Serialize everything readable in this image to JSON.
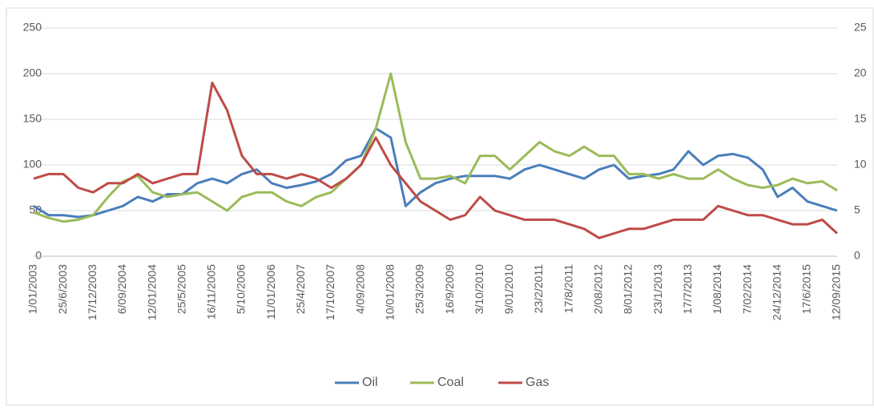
{
  "chart_data": {
    "type": "line",
    "categories": [
      "1/01/2003",
      null,
      "25/6/2003",
      null,
      "17/12/2003",
      null,
      "6/09/2004",
      null,
      "12/01/2004",
      null,
      "25/5/2005",
      null,
      "16/11/2005",
      null,
      "5/10/2006",
      null,
      "11/01/2006",
      null,
      "25/4/2007",
      null,
      "17/10/2007",
      null,
      "4/09/2008",
      null,
      "10/01/2008",
      null,
      "25/3/2009",
      null,
      "16/9/2009",
      null,
      "3/10/2010",
      null,
      "9/01/2010",
      null,
      "23/2/2011",
      null,
      "17/8/2011",
      null,
      "2/08/2012",
      null,
      "8/01/2012",
      null,
      "23/1/2013",
      null,
      "17/7/2013",
      null,
      "1/08/2014",
      null,
      "7/02/2014",
      null,
      "24/12/2014",
      null,
      "17/6/2015",
      null,
      "12/09/2015"
    ],
    "series": [
      {
        "name": "Oil",
        "color": "#4a7ebb",
        "values": [
          55,
          45,
          45,
          43,
          45,
          50,
          55,
          65,
          60,
          68,
          68,
          80,
          85,
          80,
          90,
          95,
          80,
          75,
          78,
          82,
          90,
          105,
          110,
          140,
          130,
          55,
          70,
          80,
          85,
          88,
          88,
          88,
          85,
          95,
          100,
          95,
          90,
          85,
          95,
          100,
          85,
          88,
          90,
          95,
          115,
          100,
          110,
          112,
          108,
          95,
          65,
          75,
          60,
          55,
          50
        ]
      },
      {
        "name": "Coal",
        "color": "#9bbb59",
        "values": [
          48,
          42,
          38,
          40,
          45,
          65,
          82,
          88,
          70,
          65,
          68,
          70,
          60,
          50,
          65,
          70,
          70,
          60,
          55,
          65,
          70,
          85,
          100,
          140,
          200,
          125,
          85,
          85,
          88,
          80,
          110,
          110,
          95,
          110,
          125,
          115,
          110,
          120,
          110,
          110,
          90,
          90,
          85,
          90,
          85,
          85,
          95,
          85,
          78,
          75,
          78,
          85,
          80,
          82,
          72
        ]
      },
      {
        "name": "Gas",
        "color": "#be4b48",
        "axis": "y2",
        "values": [
          8.5,
          9,
          9,
          7.5,
          7,
          8,
          8,
          9,
          8,
          8.5,
          9,
          9,
          19,
          16,
          11,
          9,
          9,
          8.5,
          9,
          8.5,
          7.5,
          8.5,
          10,
          13,
          10,
          8,
          6,
          5,
          4,
          4.5,
          6.5,
          5,
          4.5,
          4,
          4,
          4,
          3.5,
          3,
          2,
          2.5,
          3,
          3,
          3.5,
          4,
          4,
          4,
          5.5,
          5,
          4.5,
          4.5,
          4,
          3.5,
          3.5,
          4,
          2.5
        ]
      }
    ],
    "ylim": [
      0,
      250
    ],
    "yticks": [
      0,
      50,
      100,
      150,
      200,
      250
    ],
    "y2lim": [
      0,
      25
    ],
    "y2ticks": [
      0,
      5,
      10,
      15,
      20,
      25
    ],
    "grid": true,
    "legend": "bottom"
  }
}
